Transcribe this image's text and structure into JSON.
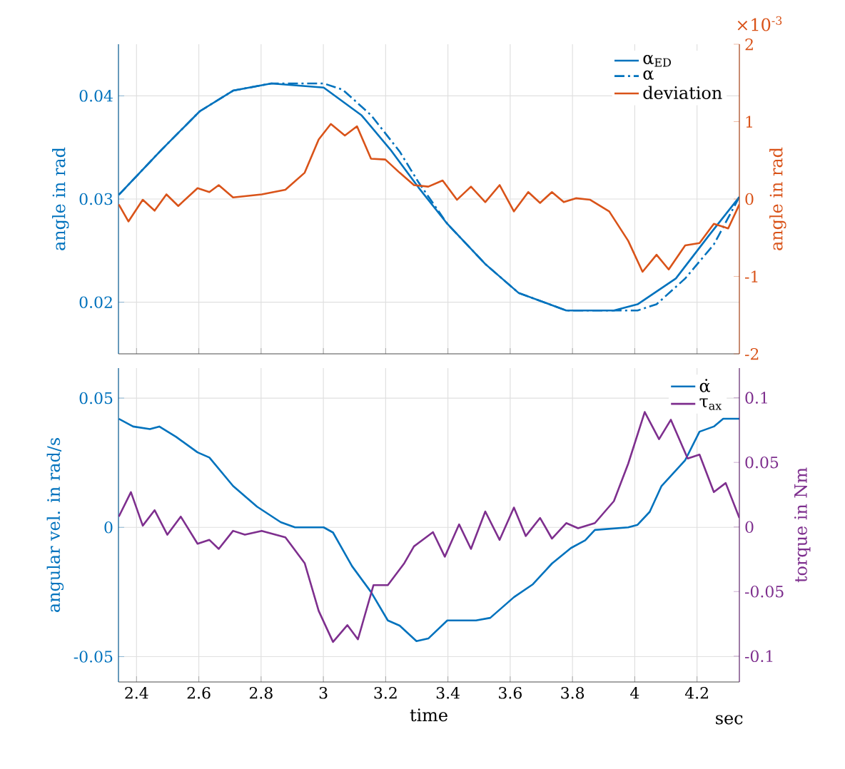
{
  "chart_data": [
    {
      "type": "line",
      "ylabel": "angle in rad",
      "y2label": "angle in rad",
      "annotations": [
        "×10$^{-3}$"
      ],
      "xlim": [
        2.342,
        4.336
      ],
      "xticks": [
        2.4,
        2.6,
        2.8,
        3,
        3.2,
        3.4,
        3.6,
        3.8,
        4,
        4.2
      ],
      "ylim": [
        0.015,
        0.045
      ],
      "yticks": [
        0.02,
        0.03,
        0.04
      ],
      "y2lim": [
        -2,
        2
      ],
      "y2ticks": [
        -2,
        -1,
        0,
        1,
        2
      ],
      "tick_labels": "y",
      "grid": true,
      "legend": "top right",
      "series": [
        {
          "name": "α$_{ED}$",
          "color": "#0072bd",
          "line_style": "solid",
          "x": [
            2.343,
            2.481,
            2.603,
            2.71,
            2.833,
            3.001,
            3.123,
            3.215,
            3.306,
            3.398,
            3.52,
            3.627,
            3.78,
            3.933,
            4.009,
            4.132,
            4.239,
            4.336
          ],
          "values": [
            0.0304,
            0.0348,
            0.0385,
            0.0405,
            0.0412,
            0.0408,
            0.0381,
            0.0348,
            0.0311,
            0.0276,
            0.0237,
            0.0209,
            0.0192,
            0.0192,
            0.0198,
            0.0223,
            0.0265,
            0.0302
          ]
        },
        {
          "name": "α",
          "color": "#0072bd",
          "line_style": "dashed",
          "x": [
            2.343,
            2.481,
            2.603,
            2.71,
            2.833,
            3.001,
            3.062,
            3.154,
            3.245,
            3.306,
            3.398,
            3.52,
            3.627,
            3.78,
            3.857,
            4.009,
            4.07,
            4.162,
            4.254,
            4.336
          ],
          "values": [
            0.0304,
            0.0348,
            0.0385,
            0.0405,
            0.0412,
            0.0412,
            0.0406,
            0.0381,
            0.0346,
            0.0316,
            0.0276,
            0.0237,
            0.0209,
            0.0192,
            0.0192,
            0.0192,
            0.0198,
            0.0223,
            0.0256,
            0.0302
          ]
        },
        {
          "name": "deviation",
          "color": "#d95319",
          "line_style": "solid",
          "axis": "y2",
          "x": [
            2.343,
            2.374,
            2.42,
            2.458,
            2.496,
            2.534,
            2.596,
            2.634,
            2.664,
            2.71,
            2.802,
            2.878,
            2.94,
            2.985,
            3.024,
            3.069,
            3.108,
            3.153,
            3.199,
            3.245,
            3.291,
            3.337,
            3.383,
            3.429,
            3.474,
            3.52,
            3.566,
            3.612,
            3.658,
            3.696,
            3.734,
            3.772,
            3.811,
            3.857,
            3.918,
            3.979,
            4.025,
            4.07,
            4.109,
            4.162,
            4.208,
            4.254,
            4.3,
            4.336
          ],
          "values": [
            -0.07,
            -0.29,
            -0.01,
            -0.15,
            0.06,
            -0.09,
            0.14,
            0.09,
            0.18,
            0.02,
            0.06,
            0.12,
            0.34,
            0.77,
            0.97,
            0.82,
            0.94,
            0.52,
            0.51,
            0.34,
            0.18,
            0.16,
            0.24,
            -0.01,
            0.16,
            -0.04,
            0.18,
            -0.16,
            0.09,
            -0.05,
            0.09,
            -0.04,
            0.01,
            -0.01,
            -0.16,
            -0.54,
            -0.94,
            -0.72,
            -0.91,
            -0.6,
            -0.57,
            -0.32,
            -0.38,
            -0.07
          ]
        }
      ]
    },
    {
      "type": "line",
      "xlabel": "time",
      "ylabel": "angular vel. in rad/s",
      "y2label": "torque in Nm",
      "annotations": [
        "sec"
      ],
      "xlim": [
        2.342,
        4.336
      ],
      "xticks": [
        2.4,
        2.6,
        2.8,
        3,
        3.2,
        3.4,
        3.6,
        3.8,
        4,
        4.2
      ],
      "ylim": [
        -0.0598,
        0.0616
      ],
      "yticks": [
        -0.05,
        0,
        0.05
      ],
      "y2lim": [
        -0.12,
        0.123
      ],
      "y2ticks": [
        -0.1,
        -0.05,
        0,
        0.05,
        0.1
      ],
      "grid": true,
      "legend": "top right",
      "series": [
        {
          "name": "α̇",
          "color": "#0072bd",
          "line_style": "solid",
          "x": [
            2.343,
            2.389,
            2.443,
            2.473,
            2.527,
            2.596,
            2.634,
            2.71,
            2.787,
            2.863,
            2.909,
            3.001,
            3.031,
            3.092,
            3.153,
            3.207,
            3.245,
            3.299,
            3.337,
            3.398,
            3.49,
            3.536,
            3.612,
            3.673,
            3.734,
            3.795,
            3.841,
            3.872,
            3.979,
            4.009,
            4.048,
            4.086,
            4.162,
            4.208,
            4.254,
            4.284,
            4.336
          ],
          "values": [
            0.042,
            0.039,
            0.038,
            0.039,
            0.035,
            0.029,
            0.027,
            0.016,
            0.008,
            0.002,
            0,
            0,
            -0.002,
            -0.015,
            -0.025,
            -0.036,
            -0.038,
            -0.044,
            -0.043,
            -0.036,
            -0.036,
            -0.035,
            -0.027,
            -0.022,
            -0.014,
            -0.008,
            -0.005,
            -0.001,
            0,
            0.001,
            0.006,
            0.016,
            0.026,
            0.037,
            0.039,
            0.042,
            0.042
          ]
        },
        {
          "name": "τ$_{ax}$",
          "color": "#7e2f8e",
          "line_style": "solid",
          "axis": "y2",
          "x": [
            2.343,
            2.382,
            2.42,
            2.458,
            2.499,
            2.542,
            2.596,
            2.634,
            2.664,
            2.71,
            2.748,
            2.802,
            2.878,
            2.94,
            2.985,
            3.031,
            3.077,
            3.111,
            3.161,
            3.207,
            3.26,
            3.291,
            3.352,
            3.39,
            3.436,
            3.474,
            3.52,
            3.566,
            3.612,
            3.65,
            3.696,
            3.734,
            3.78,
            3.818,
            3.872,
            3.933,
            3.979,
            4.032,
            4.078,
            4.116,
            4.17,
            4.208,
            4.254,
            4.292,
            4.336
          ],
          "values": [
            0.008,
            0.027,
            0.001,
            0.013,
            -0.006,
            0.008,
            -0.013,
            -0.01,
            -0.017,
            -0.003,
            -0.006,
            -0.003,
            -0.008,
            -0.028,
            -0.065,
            -0.089,
            -0.076,
            -0.087,
            -0.045,
            -0.045,
            -0.028,
            -0.015,
            -0.004,
            -0.023,
            0.002,
            -0.017,
            0.012,
            -0.01,
            0.015,
            -0.007,
            0.007,
            -0.009,
            0.003,
            -0.001,
            0.003,
            0.02,
            0.049,
            0.089,
            0.068,
            0.083,
            0.053,
            0.056,
            0.027,
            0.034,
            0.007
          ]
        }
      ]
    }
  ]
}
